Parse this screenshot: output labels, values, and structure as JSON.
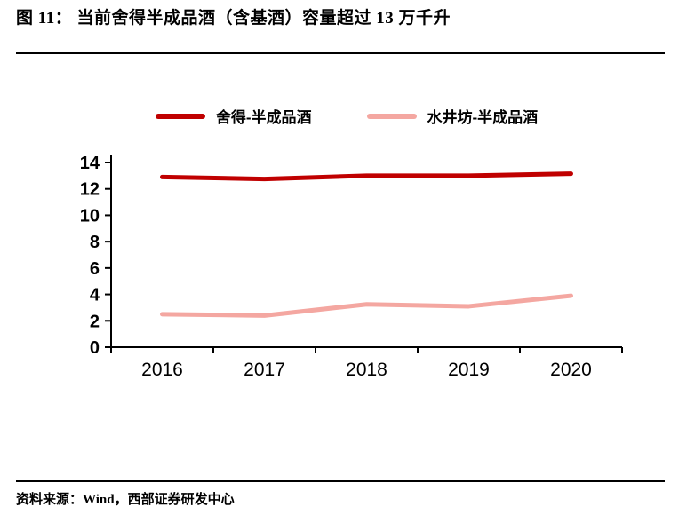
{
  "header": {
    "title": "图 11： 当前舍得半成品酒（含基酒）容量超过 13 万千升"
  },
  "legend": [
    {
      "label": "舍得-半成品酒",
      "color": "#c00000"
    },
    {
      "label": "水井坊-半成品酒",
      "color": "#f4a7a1"
    }
  ],
  "chart_data": {
    "type": "line",
    "categories": [
      "2016",
      "2017",
      "2018",
      "2019",
      "2020"
    ],
    "series": [
      {
        "name": "舍得-半成品酒",
        "color": "#c00000",
        "values": [
          12.9,
          12.75,
          13.0,
          13.0,
          13.15
        ]
      },
      {
        "name": "水井坊-半成品酒",
        "color": "#f4a7a1",
        "values": [
          2.5,
          2.4,
          3.25,
          3.1,
          3.9
        ]
      }
    ],
    "ylim": [
      0,
      14
    ],
    "yticks": [
      0,
      2,
      4,
      6,
      8,
      10,
      12,
      14
    ],
    "grid": false,
    "legend_position": "top",
    "xlabel": "",
    "ylabel": "",
    "title": "当前舍得半成品酒（含基酒）容量超过 13 万千升"
  },
  "footer": {
    "source": "资料来源：Wind，西部证券研发中心"
  }
}
